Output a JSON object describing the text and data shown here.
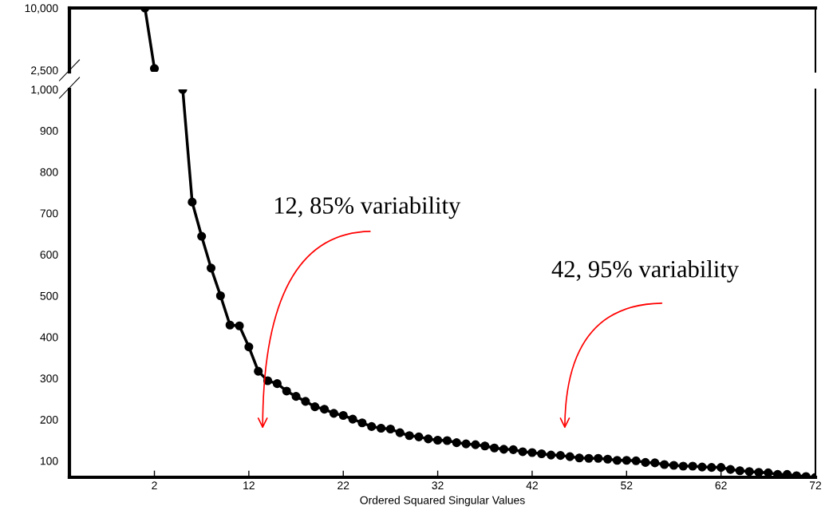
{
  "chart_data": [
    {
      "type": "line",
      "xlim": [
        -7,
        72
      ],
      "ylim": [
        2300,
        10000
      ],
      "yticks": [
        {
          "value": 2500,
          "label": "2,500"
        },
        {
          "value": 10000,
          "label": "10,000"
        }
      ],
      "tick_labels": "y",
      "marker": "circle",
      "line_style": "solid",
      "series": [
        {
          "color": "#000000",
          "x": [
            1,
            2
          ],
          "values": [
            10000,
            2700
          ]
        }
      ]
    },
    {
      "type": "line",
      "xlabel": "Ordered Squared Singular Values",
      "xlim": [
        -7,
        72
      ],
      "ylim": [
        60,
        1000
      ],
      "xticks": [
        2,
        12,
        22,
        32,
        42,
        52,
        62,
        72
      ],
      "yticks": [
        100,
        200,
        300,
        400,
        500,
        600,
        700,
        800,
        900,
        {
          "value": 1000,
          "label": "1,000"
        }
      ],
      "marker": "circle",
      "line_style": "solid",
      "annotations": [
        "12, 85% variability",
        "42, 95% variability"
      ],
      "series": [
        {
          "color": "#000000",
          "x": [
            5,
            6,
            7,
            8,
            9,
            10,
            11,
            12,
            13,
            14,
            15,
            16,
            17,
            18,
            19,
            20,
            21,
            22,
            23,
            24,
            25,
            26,
            27,
            28,
            29,
            30,
            31,
            32,
            33,
            34,
            35,
            36,
            37,
            38,
            39,
            40,
            41,
            42,
            43,
            44,
            45,
            46,
            47,
            48,
            49,
            50,
            51,
            52,
            53,
            54,
            55,
            56,
            57,
            58,
            59,
            60,
            61,
            62,
            63,
            64,
            65,
            66,
            67,
            68,
            69,
            70,
            71,
            72
          ],
          "values": [
            1000,
            727,
            644,
            567,
            500,
            429,
            427,
            376,
            317,
            294,
            287,
            269,
            256,
            244,
            231,
            225,
            215,
            210,
            201,
            192,
            183,
            179,
            177,
            168,
            161,
            158,
            153,
            150,
            149,
            144,
            141,
            139,
            136,
            131,
            128,
            127,
            122,
            120,
            117,
            114,
            113,
            110,
            107,
            106,
            106,
            104,
            101,
            101,
            100,
            96,
            95,
            91,
            89,
            87,
            87,
            85,
            84,
            84,
            79,
            76,
            74,
            72,
            71,
            67,
            67,
            64,
            62,
            60
          ]
        }
      ]
    }
  ]
}
